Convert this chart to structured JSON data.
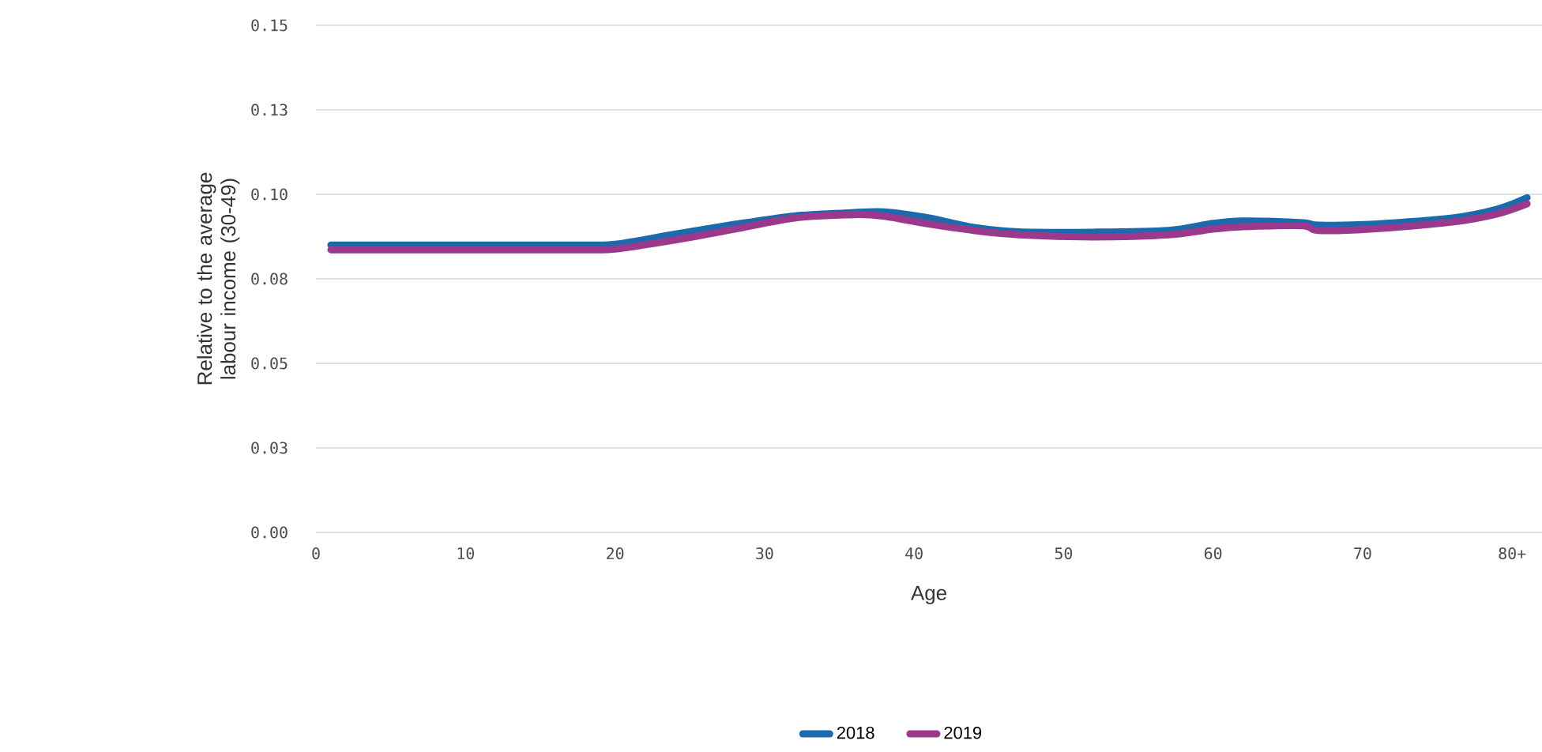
{
  "chart_data": {
    "type": "line",
    "xlabel": "Age",
    "ylabel": "Relative to the average labour income (30-49)",
    "xlim": [
      0,
      82
    ],
    "xticks": [
      0,
      10,
      20,
      30,
      40,
      50,
      60,
      70,
      {
        "value": 80,
        "label": "80+"
      }
    ],
    "ylim": [
      0,
      0.15
    ],
    "yticks": [
      {
        "value": 0,
        "label": "0.00"
      },
      {
        "value": 0.025,
        "label": "0.03"
      },
      {
        "value": 0.05,
        "label": "0.05"
      },
      {
        "value": 0.075,
        "label": "0.08"
      },
      {
        "value": 0.1,
        "label": "0.10"
      },
      {
        "value": 0.125,
        "label": "0.13"
      },
      0.15
    ],
    "grid": "y",
    "legend": "bottom",
    "marker": "none",
    "line_style": "solid",
    "x": [
      1,
      10,
      18,
      20,
      24,
      28,
      32,
      36,
      38,
      41,
      44,
      47,
      52,
      57,
      60,
      62,
      66,
      67,
      70.5,
      76,
      79,
      81
    ],
    "series": [
      {
        "name": "2018",
        "color": "#1a6aad",
        "values": [
          0.085,
          0.085,
          0.085,
          0.0852,
          0.0882,
          0.0911,
          0.0936,
          0.0946,
          0.0948,
          0.093,
          0.0902,
          0.0889,
          0.0888,
          0.0893,
          0.0914,
          0.0921,
          0.0916,
          0.0909,
          0.0911,
          0.093,
          0.0956,
          0.099
        ]
      },
      {
        "name": "2019",
        "color": "#9b3a8c",
        "values": [
          0.0836,
          0.0836,
          0.0836,
          0.0838,
          0.0865,
          0.0897,
          0.093,
          0.094,
          0.0935,
          0.0912,
          0.0893,
          0.088,
          0.0874,
          0.088,
          0.0897,
          0.0904,
          0.0907,
          0.0893,
          0.0897,
          0.0918,
          0.0942,
          0.0972
        ]
      }
    ]
  }
}
